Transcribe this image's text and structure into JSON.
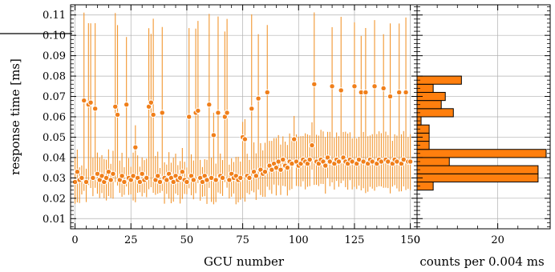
{
  "colors": {
    "marker_face": "#f07f1a",
    "marker_edge": "#ffffff",
    "errorbar": "#f2962f",
    "hist_face": "#ff7f0e",
    "hist_edge": "#000000",
    "grid": "#b0b0b0"
  },
  "chart_data": [
    {
      "type": "scatter",
      "title": "",
      "xlabel": "GCU number",
      "ylabel": "response time [ms]",
      "xlim": [
        -2,
        153
      ],
      "ylim": [
        0.005,
        0.115
      ],
      "xticks": [
        0,
        25,
        50,
        75,
        100,
        125,
        150
      ],
      "yticks": [
        0.01,
        0.02,
        0.03,
        0.04,
        0.05,
        0.06,
        0.07,
        0.08,
        0.09,
        0.1,
        0.11
      ],
      "ytick_labels": [
        "0.01",
        "0.02",
        "0.03",
        "0.04",
        "0.05",
        "0.06",
        "0.07",
        "0.08",
        "0.09",
        "0.10",
        "0.11"
      ],
      "grid": true,
      "series": [
        {
          "marker": "circle",
          "points": [
            {
              "x": 0,
              "y": 0.028
            },
            {
              "x": 1,
              "y": 0.033
            },
            {
              "x": 2,
              "y": 0.029
            },
            {
              "x": 3,
              "y": 0.03
            },
            {
              "x": 4,
              "y": 0.068
            },
            {
              "x": 5,
              "y": 0.028
            },
            {
              "x": 6,
              "y": 0.066
            },
            {
              "x": 7,
              "y": 0.067
            },
            {
              "x": 8,
              "y": 0.03
            },
            {
              "x": 9,
              "y": 0.064
            },
            {
              "x": 10,
              "y": 0.032
            },
            {
              "x": 11,
              "y": 0.029
            },
            {
              "x": 12,
              "y": 0.031
            },
            {
              "x": 13,
              "y": 0.028
            },
            {
              "x": 14,
              "y": 0.03
            },
            {
              "x": 15,
              "y": 0.033
            },
            {
              "x": 16,
              "y": 0.029
            },
            {
              "x": 17,
              "y": 0.032
            },
            {
              "x": 18,
              "y": 0.065
            },
            {
              "x": 19,
              "y": 0.061
            },
            {
              "x": 20,
              "y": 0.029
            },
            {
              "x": 21,
              "y": 0.031
            },
            {
              "x": 22,
              "y": 0.028
            },
            {
              "x": 23,
              "y": 0.066
            },
            {
              "x": 24,
              "y": 0.03
            },
            {
              "x": 25,
              "y": 0.029
            },
            {
              "x": 26,
              "y": 0.031
            },
            {
              "x": 27,
              "y": 0.045
            },
            {
              "x": 28,
              "y": 0.03
            },
            {
              "x": 29,
              "y": 0.028
            },
            {
              "x": 30,
              "y": 0.032
            },
            {
              "x": 31,
              "y": 0.029
            },
            {
              "x": 32,
              "y": 0.03
            },
            {
              "x": 33,
              "y": 0.065
            },
            {
              "x": 34,
              "y": 0.067
            },
            {
              "x": 35,
              "y": 0.061
            },
            {
              "x": 36,
              "y": 0.029
            },
            {
              "x": 37,
              "y": 0.031
            },
            {
              "x": 38,
              "y": 0.028
            },
            {
              "x": 39,
              "y": 0.062
            },
            {
              "x": 40,
              "y": 0.03
            },
            {
              "x": 41,
              "y": 0.029
            },
            {
              "x": 42,
              "y": 0.032
            },
            {
              "x": 43,
              "y": 0.03
            },
            {
              "x": 44,
              "y": 0.028
            },
            {
              "x": 45,
              "y": 0.031
            },
            {
              "x": 46,
              "y": 0.029
            },
            {
              "x": 47,
              "y": 0.03
            },
            {
              "x": 48,
              "y": 0.033
            },
            {
              "x": 49,
              "y": 0.029
            },
            {
              "x": 50,
              "y": 0.028
            },
            {
              "x": 51,
              "y": 0.06
            },
            {
              "x": 52,
              "y": 0.031
            },
            {
              "x": 53,
              "y": 0.029
            },
            {
              "x": 54,
              "y": 0.062
            },
            {
              "x": 55,
              "y": 0.063
            },
            {
              "x": 56,
              "y": 0.03
            },
            {
              "x": 57,
              "y": 0.028
            },
            {
              "x": 58,
              "y": 0.031
            },
            {
              "x": 59,
              "y": 0.029
            },
            {
              "x": 60,
              "y": 0.066
            },
            {
              "x": 61,
              "y": 0.03
            },
            {
              "x": 62,
              "y": 0.051
            },
            {
              "x": 63,
              "y": 0.029
            },
            {
              "x": 64,
              "y": 0.062
            },
            {
              "x": 65,
              "y": 0.031
            },
            {
              "x": 66,
              "y": 0.03
            },
            {
              "x": 67,
              "y": 0.06
            },
            {
              "x": 68,
              "y": 0.062
            },
            {
              "x": 69,
              "y": 0.029
            },
            {
              "x": 70,
              "y": 0.032
            },
            {
              "x": 71,
              "y": 0.03
            },
            {
              "x": 72,
              "y": 0.031
            },
            {
              "x": 73,
              "y": 0.029
            },
            {
              "x": 74,
              "y": 0.03
            },
            {
              "x": 75,
              "y": 0.05
            },
            {
              "x": 76,
              "y": 0.049
            },
            {
              "x": 77,
              "y": 0.031
            },
            {
              "x": 78,
              "y": 0.03
            },
            {
              "x": 79,
              "y": 0.064
            },
            {
              "x": 80,
              "y": 0.033
            },
            {
              "x": 81,
              "y": 0.031
            },
            {
              "x": 82,
              "y": 0.069
            },
            {
              "x": 83,
              "y": 0.034
            },
            {
              "x": 84,
              "y": 0.032
            },
            {
              "x": 85,
              "y": 0.033
            },
            {
              "x": 86,
              "y": 0.072
            },
            {
              "x": 87,
              "y": 0.036
            },
            {
              "x": 88,
              "y": 0.034
            },
            {
              "x": 89,
              "y": 0.037
            },
            {
              "x": 90,
              "y": 0.035
            },
            {
              "x": 91,
              "y": 0.038
            },
            {
              "x": 92,
              "y": 0.034
            },
            {
              "x": 93,
              "y": 0.039
            },
            {
              "x": 94,
              "y": 0.036
            },
            {
              "x": 95,
              "y": 0.035
            },
            {
              "x": 96,
              "y": 0.038
            },
            {
              "x": 97,
              "y": 0.037
            },
            {
              "x": 98,
              "y": 0.049
            },
            {
              "x": 99,
              "y": 0.038
            },
            {
              "x": 100,
              "y": 0.036
            },
            {
              "x": 101,
              "y": 0.037
            },
            {
              "x": 102,
              "y": 0.039
            },
            {
              "x": 103,
              "y": 0.038
            },
            {
              "x": 104,
              "y": 0.037
            },
            {
              "x": 105,
              "y": 0.039
            },
            {
              "x": 106,
              "y": 0.046
            },
            {
              "x": 107,
              "y": 0.076
            },
            {
              "x": 108,
              "y": 0.038
            },
            {
              "x": 109,
              "y": 0.037
            },
            {
              "x": 110,
              "y": 0.039
            },
            {
              "x": 111,
              "y": 0.038
            },
            {
              "x": 112,
              "y": 0.036
            },
            {
              "x": 113,
              "y": 0.04
            },
            {
              "x": 114,
              "y": 0.038
            },
            {
              "x": 115,
              "y": 0.075
            },
            {
              "x": 116,
              "y": 0.037
            },
            {
              "x": 117,
              "y": 0.039
            },
            {
              "x": 118,
              "y": 0.038
            },
            {
              "x": 119,
              "y": 0.073
            },
            {
              "x": 120,
              "y": 0.04
            },
            {
              "x": 121,
              "y": 0.038
            },
            {
              "x": 122,
              "y": 0.037
            },
            {
              "x": 123,
              "y": 0.039
            },
            {
              "x": 124,
              "y": 0.038
            },
            {
              "x": 125,
              "y": 0.075
            },
            {
              "x": 126,
              "y": 0.037
            },
            {
              "x": 127,
              "y": 0.039
            },
            {
              "x": 128,
              "y": 0.072
            },
            {
              "x": 129,
              "y": 0.038
            },
            {
              "x": 130,
              "y": 0.072
            },
            {
              "x": 131,
              "y": 0.037
            },
            {
              "x": 132,
              "y": 0.039
            },
            {
              "x": 133,
              "y": 0.038
            },
            {
              "x": 134,
              "y": 0.075
            },
            {
              "x": 135,
              "y": 0.037
            },
            {
              "x": 136,
              "y": 0.039
            },
            {
              "x": 137,
              "y": 0.038
            },
            {
              "x": 138,
              "y": 0.074
            },
            {
              "x": 139,
              "y": 0.039
            },
            {
              "x": 140,
              "y": 0.038
            },
            {
              "x": 141,
              "y": 0.07
            },
            {
              "x": 142,
              "y": 0.037
            },
            {
              "x": 143,
              "y": 0.039
            },
            {
              "x": 144,
              "y": 0.038
            },
            {
              "x": 145,
              "y": 0.072
            },
            {
              "x": 146,
              "y": 0.037
            },
            {
              "x": 147,
              "y": 0.039
            },
            {
              "x": 148,
              "y": 0.072
            },
            {
              "x": 149,
              "y": 0.038
            },
            {
              "x": 150,
              "y": 0.038
            }
          ]
        }
      ]
    },
    {
      "type": "bar",
      "orientation": "horizontal",
      "title": "",
      "xlabel": "counts per 0.004 ms",
      "ylabel": "",
      "xlim": [
        0,
        33
      ],
      "xticks": [
        0,
        20
      ],
      "grid": true,
      "bins": [
        {
          "y0": 0.024,
          "y1": 0.028,
          "count": 4
        },
        {
          "y0": 0.028,
          "y1": 0.032,
          "count": 30
        },
        {
          "y0": 0.032,
          "y1": 0.036,
          "count": 30
        },
        {
          "y0": 0.036,
          "y1": 0.04,
          "count": 8
        },
        {
          "y0": 0.04,
          "y1": 0.044,
          "count": 32
        },
        {
          "y0": 0.044,
          "y1": 0.048,
          "count": 3
        },
        {
          "y0": 0.048,
          "y1": 0.052,
          "count": 3
        },
        {
          "y0": 0.052,
          "y1": 0.056,
          "count": 3
        },
        {
          "y0": 0.056,
          "y1": 0.06,
          "count": 1
        },
        {
          "y0": 0.06,
          "y1": 0.064,
          "count": 9
        },
        {
          "y0": 0.064,
          "y1": 0.068,
          "count": 6
        },
        {
          "y0": 0.068,
          "y1": 0.072,
          "count": 7
        },
        {
          "y0": 0.072,
          "y1": 0.076,
          "count": 4
        },
        {
          "y0": 0.076,
          "y1": 0.08,
          "count": 11
        }
      ]
    }
  ]
}
